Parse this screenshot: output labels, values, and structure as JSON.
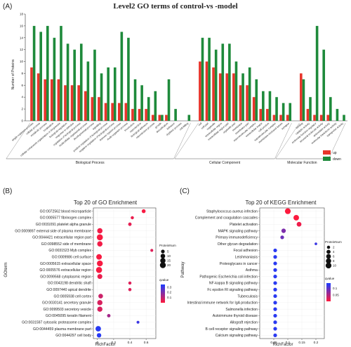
{
  "panel_labels": [
    "(A)",
    "(B)",
    "(C)"
  ],
  "chart_data": [
    {
      "type": "bar",
      "title": "Level2 GO terms of control-vs -model",
      "ylabel": "Number of Proteins",
      "ylim": [
        0,
        18
      ],
      "yticks": [
        0,
        2,
        4,
        6,
        8,
        10,
        12,
        14,
        16,
        18
      ],
      "legend": {
        "placement": "right",
        "entries": [
          "up",
          "down"
        ]
      },
      "colors": {
        "up": "#e8352b",
        "down": "#1e8a3b"
      },
      "categories": [
        "single-organism process",
        "cellular process",
        "metabolic process",
        "localization",
        "cellular component organization or biogenesis",
        "biological regulation",
        "response to stimulus",
        "regulation of biological process",
        "multicellular organismal process",
        "developmental process",
        "signaling",
        "positive regulation of biological process",
        "negative regulation of biological process",
        "immune system process",
        "multi-organism process",
        "locomotion",
        "reproduction",
        "biological adhesion",
        "reproductive process",
        "growth",
        "detoxification",
        "behavior",
        "rhythmic process",
        "cell killing",
        "cell",
        "cell part",
        "organelle",
        "extracellular region",
        "extracellular region part",
        "organelle part",
        "membrane",
        "membrane part",
        "macromolecular complex",
        "extracellular matrix",
        "cell junction",
        "supramolecular complex",
        "membrane-enclosed lumen",
        "synapse",
        "binding",
        "catalytic activity",
        "molecular function regulator",
        "structural molecule activity",
        "antioxidant activity",
        "molecular transducer activity",
        "transporter activity"
      ],
      "series": [
        {
          "name": "up",
          "values": [
            9,
            8,
            7,
            7,
            7,
            6,
            6,
            6,
            5,
            4,
            4,
            3,
            3,
            3,
            3,
            2,
            2,
            2,
            1,
            1,
            1,
            0,
            0,
            0,
            10,
            10,
            9,
            8,
            8,
            8,
            6,
            6,
            4,
            2,
            2,
            1,
            1,
            1,
            8,
            2,
            1,
            1,
            1,
            0,
            0
          ]
        },
        {
          "name": "down",
          "values": [
            16,
            15,
            16,
            14,
            16,
            13,
            12,
            13,
            10,
            12,
            8,
            9,
            9,
            15,
            14,
            7,
            6,
            4,
            5,
            1,
            7,
            2,
            0,
            1,
            14,
            14,
            12,
            13,
            13,
            10,
            8,
            9,
            7,
            5,
            5,
            4,
            3,
            3,
            7,
            4,
            16,
            12,
            4,
            2,
            1
          ]
        }
      ],
      "groups": [
        {
          "label": "Biological Process",
          "first": 0,
          "last": 23
        },
        {
          "label": "Cellular Component",
          "first": 24,
          "last": 37
        },
        {
          "label": "Molecular Function",
          "first": 38,
          "last": 44
        }
      ]
    },
    {
      "type": "scatter",
      "title": "Top 20 of GO Enrichment",
      "xlabel": "RichFactor",
      "ylabel": "GOterm",
      "xlim": [
        -0.05,
        0.72
      ],
      "xticks": [
        0.0,
        0.2,
        0.4,
        0.6
      ],
      "size_legend": {
        "title": "ProteinNum",
        "values": [
          5,
          10,
          15,
          20
        ]
      },
      "color_legend": {
        "title": "qvalue",
        "ticks": [
          0.1,
          0.2,
          0.3
        ],
        "low_color": "#ff1a3c",
        "high_color": "#1a3cff"
      },
      "points": [
        {
          "term": "GO:0072562 blood microparticle",
          "x": 0.57,
          "num": 6,
          "q": 0.01
        },
        {
          "term": "GO:0005577 fibrinogen complex",
          "x": 0.43,
          "num": 3,
          "q": 0.03
        },
        {
          "term": "GO:0031091 platelet alpha granule",
          "x": 0.4,
          "num": 4,
          "q": 0.04
        },
        {
          "term": "GO:0009897 external side of plasma membrane",
          "x": 0.03,
          "num": 15,
          "q": 0.02
        },
        {
          "term": "GO:0044421 extracellular region part",
          "x": 0.03,
          "num": 21,
          "q": 0.01
        },
        {
          "term": "GO:0098552 side of membrane",
          "x": 0.03,
          "num": 15,
          "q": 0.02
        },
        {
          "term": "GO:0031523 Myb complex",
          "x": 0.67,
          "num": 2,
          "q": 0.05
        },
        {
          "term": "GO:0009986 cell surface",
          "x": 0.02,
          "num": 17,
          "q": 0.01
        },
        {
          "term": "GO:0005615 extracellular space",
          "x": 0.03,
          "num": 20,
          "q": 0.01
        },
        {
          "term": "GO:0005576 extracellular region",
          "x": 0.02,
          "num": 21,
          "q": 0.01
        },
        {
          "term": "GO:0099568 cytoplasmic region",
          "x": 0.03,
          "num": 12,
          "q": 0.03
        },
        {
          "term": "GO:0043198 dendritic shaft",
          "x": 0.4,
          "num": 3,
          "q": 0.05
        },
        {
          "term": "GO:0097440 apical dendrite",
          "x": 0.4,
          "num": 3,
          "q": 0.05
        },
        {
          "term": "GO:0005938 cell cortex",
          "x": 0.04,
          "num": 10,
          "q": 0.08
        },
        {
          "term": "GO:0030141 secretory granule",
          "x": 0.03,
          "num": 14,
          "q": 0.06
        },
        {
          "term": "GO:0099503 secretory vesicle",
          "x": 0.03,
          "num": 14,
          "q": 0.06
        },
        {
          "term": "GO:0045095 keratin filament",
          "x": 0.14,
          "num": 4,
          "q": 0.14
        },
        {
          "term": "GO:0031597 cytosolic proteasome complex",
          "x": 0.5,
          "num": 2,
          "q": 0.3
        },
        {
          "term": "GO:0044459 plasma membrane part",
          "x": 0.01,
          "num": 16,
          "q": 0.33
        },
        {
          "term": "GO:0044297 cell body",
          "x": 0.02,
          "num": 9,
          "q": 0.33
        }
      ]
    },
    {
      "type": "scatter",
      "title": "Top 20 of KEGG Enrichment",
      "xlabel": "RichFactor",
      "ylabel": "Pathway",
      "xlim": [
        0.0,
        0.23
      ],
      "xticks": [
        0.05,
        0.1,
        0.15,
        0.2
      ],
      "size_legend": {
        "title": "ProteinNum",
        "values": [
          2,
          4,
          6,
          8,
          10
        ]
      },
      "color_legend": {
        "title": "qvalue",
        "ticks": [
          0.05,
          0.1
        ],
        "low_color": "#ff1a3c",
        "high_color": "#1a3cff"
      },
      "points": [
        {
          "term": "Staphylococcus aureus infection",
          "x": 0.1,
          "num": 10,
          "q": 0.001
        },
        {
          "term": "Complement and coagulation cascades",
          "x": 0.13,
          "num": 9,
          "q": 0.002
        },
        {
          "term": "Platelet activation",
          "x": 0.14,
          "num": 6,
          "q": 0.01
        },
        {
          "term": "MAPK signaling pathway",
          "x": 0.085,
          "num": 5,
          "q": 0.08
        },
        {
          "term": "Primary immunodeficiency",
          "x": 0.08,
          "num": 3,
          "q": 0.09
        },
        {
          "term": "Other glycan degradation",
          "x": 0.2,
          "num": 1,
          "q": 0.12
        },
        {
          "term": "Focal adhesion",
          "x": 0.055,
          "num": 3,
          "q": 0.13
        },
        {
          "term": "Leishmaniasis",
          "x": 0.055,
          "num": 3,
          "q": 0.13
        },
        {
          "term": "Proteoglycans in cancer",
          "x": 0.055,
          "num": 3,
          "q": 0.13
        },
        {
          "term": "Asthma",
          "x": 0.055,
          "num": 3,
          "q": 0.13
        },
        {
          "term": "Pathogenic Escherichia coli infection",
          "x": 0.055,
          "num": 3,
          "q": 0.13
        },
        {
          "term": "NF-kappa B signaling pathway",
          "x": 0.055,
          "num": 3,
          "q": 0.13
        },
        {
          "term": "Fc epsilon RI signaling pathway",
          "x": 0.055,
          "num": 3,
          "q": 0.13
        },
        {
          "term": "Tuberculosis",
          "x": 0.055,
          "num": 3,
          "q": 0.13
        },
        {
          "term": "Intestinal immune network for IgA production",
          "x": 0.055,
          "num": 3,
          "q": 0.13
        },
        {
          "term": "Salmonella infection",
          "x": 0.055,
          "num": 3,
          "q": 0.13
        },
        {
          "term": "Autoimmune thyroid disease",
          "x": 0.055,
          "num": 3,
          "q": 0.13
        },
        {
          "term": "Allograft rejection",
          "x": 0.055,
          "num": 3,
          "q": 0.13
        },
        {
          "term": "B cell receptor signaling pathway",
          "x": 0.055,
          "num": 3,
          "q": 0.13
        },
        {
          "term": "Calcium signaling pathway",
          "x": 0.055,
          "num": 3,
          "q": 0.13
        }
      ]
    }
  ]
}
